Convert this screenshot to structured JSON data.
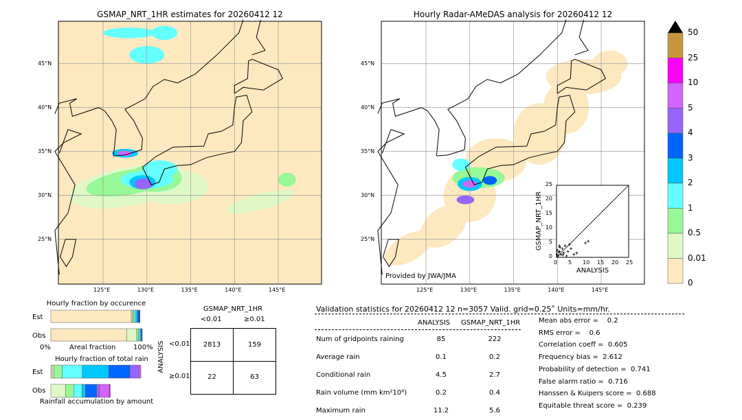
{
  "left_map": {
    "title": "GSMAP_NRT_1HR estimates for 20260412 12",
    "lon_ticks": [
      "125°E",
      "130°E",
      "135°E",
      "140°E",
      "145°E"
    ],
    "lat_ticks": [
      "45°N",
      "40°N",
      "35°N",
      "30°N",
      "25°N"
    ]
  },
  "right_map": {
    "title": "Hourly Radar-AMeDAS analysis for 20260412 12",
    "lon_ticks": [
      "125°E",
      "130°E",
      "135°E",
      "140°E",
      "145°E"
    ],
    "lat_ticks": [
      "45°N",
      "40°N",
      "35°N",
      "30°N",
      "25°N"
    ],
    "credit": "Provided by JWA/JMA"
  },
  "colorbar": {
    "labels": [
      "50",
      "25",
      "10",
      "5",
      "4",
      "3",
      "2",
      "1",
      "0.5",
      "0.01",
      "0"
    ],
    "colors": [
      "#c8963c",
      "#ff00ff",
      "#d264ff",
      "#9664ff",
      "#0064ff",
      "#00c8ff",
      "#64ffff",
      "#96f896",
      "#e0f8c8",
      "#fee8c0"
    ]
  },
  "chart_data": [
    {
      "type": "scatter",
      "xlabel": "ANALYSIS",
      "ylabel": "GSMAP_NRT_1HR",
      "xlim": [
        0,
        25
      ],
      "ylim": [
        0,
        25
      ],
      "ticks": [
        "0",
        "5",
        "10",
        "15",
        "20",
        "25"
      ],
      "points": [
        [
          0.5,
          0.5
        ],
        [
          1,
          2
        ],
        [
          1.5,
          1
        ],
        [
          2,
          3
        ],
        [
          0.3,
          2.5
        ],
        [
          2.5,
          1.5
        ],
        [
          3,
          4
        ],
        [
          1,
          4
        ],
        [
          4,
          2
        ],
        [
          5,
          3
        ],
        [
          3.5,
          0.5
        ],
        [
          6,
          1
        ],
        [
          7,
          1.5
        ],
        [
          10,
          5
        ],
        [
          11,
          5.6
        ],
        [
          0.2,
          1
        ],
        [
          1.2,
          3.5
        ],
        [
          2.2,
          0.8
        ],
        [
          4.5,
          4.5
        ],
        [
          0.8,
          1.8
        ]
      ]
    },
    {
      "type": "bar",
      "title": "Hourly fraction by occurence",
      "rows": [
        "Est",
        "Obs"
      ],
      "xlabel": "Areal fraction",
      "xticks": [
        "0%",
        "100%"
      ]
    },
    {
      "type": "bar",
      "title": "Hourly fraction of total rain",
      "rows": [
        "Est",
        "Obs"
      ],
      "xlabel": "Rainfall accumulation by amount"
    }
  ],
  "contingency": {
    "title": "GSMAP_NRT_1HR",
    "col_headers": [
      "<0.01",
      "≥0.01"
    ],
    "row_label": "ANALYSIS",
    "row_headers": [
      "<0.01",
      "≥0.01"
    ],
    "cells": [
      [
        "2813",
        "159"
      ],
      [
        "22",
        "63"
      ]
    ]
  },
  "stats": {
    "header": "Validation statistics for 20260412 12  n=3057 Valid. grid=0.25˚ Units=mm/hr.",
    "col_analysis": "ANALYSIS",
    "col_gsmap": "GSMAP_NRT_1HR",
    "rows": [
      {
        "label": "Num of gridpoints raining",
        "a": "85",
        "g": "222"
      },
      {
        "label": "Average rain",
        "a": "0.1",
        "g": "0.2"
      },
      {
        "label": "Conditional rain",
        "a": "4.5",
        "g": "2.7"
      },
      {
        "label": "Rain volume (mm km²10⁶)",
        "a": "0.2",
        "g": "0.4"
      },
      {
        "label": "Maximum rain",
        "a": "11.2",
        "g": "5.6"
      }
    ],
    "scores": [
      "Mean abs error =    0.2",
      "RMS error =    0.6",
      "Correlation coeff =  0.605",
      "Frequency bias =  2.612",
      "Probability of detection =  0.741",
      "False alarm ratio =  0.716",
      "Hanssen & Kuipers score =  0.688",
      "Equitable threat score =  0.239"
    ]
  }
}
